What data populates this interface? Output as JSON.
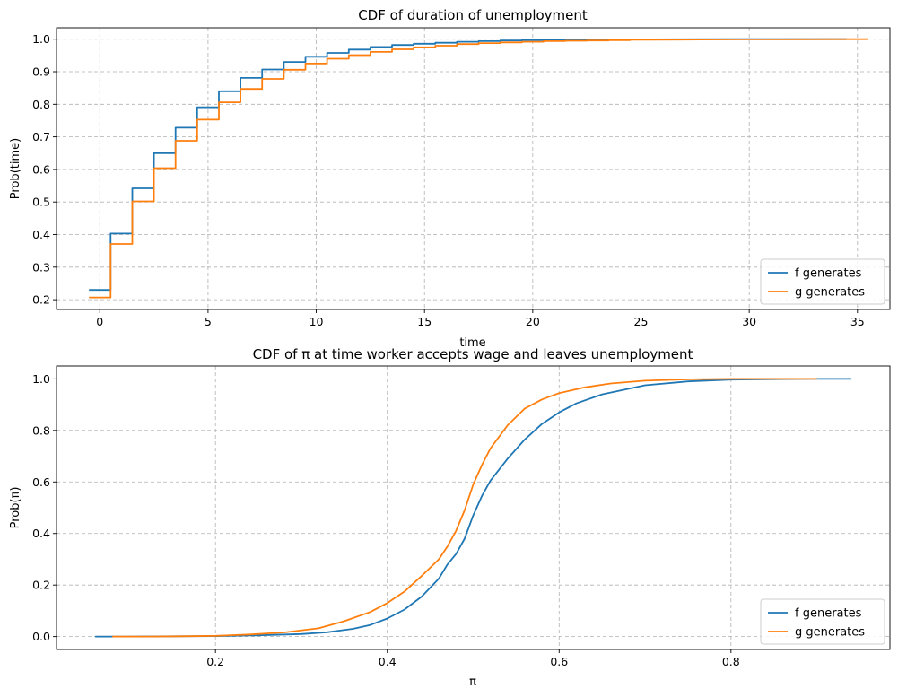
{
  "chart_data": [
    {
      "type": "line",
      "title": "CDF of duration of unemployment",
      "xlabel": "time",
      "ylabel": "Prob(time)",
      "xlim": [
        -2,
        36.5
      ],
      "ylim": [
        0.17,
        1.035
      ],
      "xticks": [
        0,
        5,
        10,
        15,
        20,
        25,
        30,
        35
      ],
      "yticks": [
        0.2,
        0.3,
        0.4,
        0.5,
        0.6,
        0.7,
        0.8,
        0.9,
        1.0
      ],
      "xtick_labels": [
        "0",
        "5",
        "10",
        "15",
        "20",
        "25",
        "30",
        "35"
      ],
      "ytick_labels": [
        "0.2",
        "0.3",
        "0.4",
        "0.5",
        "0.6",
        "0.7",
        "0.8",
        "0.9",
        "1.0"
      ],
      "grid": true,
      "legend_position": "lower-right",
      "step": true,
      "series": [
        {
          "name": "f generates",
          "color": "#1f77b4",
          "x": [
            0,
            1,
            2,
            3,
            4,
            5,
            6,
            7,
            8,
            9,
            10,
            11,
            12,
            13,
            14,
            15,
            16,
            17,
            18,
            19,
            20,
            21,
            22,
            23,
            24,
            25,
            30,
            34
          ],
          "y": [
            0.23,
            0.403,
            0.542,
            0.65,
            0.728,
            0.791,
            0.84,
            0.881,
            0.907,
            0.93,
            0.946,
            0.958,
            0.968,
            0.976,
            0.982,
            0.986,
            0.989,
            0.992,
            0.994,
            0.996,
            0.997,
            0.998,
            0.998,
            0.999,
            0.999,
            0.9995,
            0.9999,
            1.0
          ]
        },
        {
          "name": "g generates",
          "color": "#ff7f0e",
          "x": [
            0,
            1,
            2,
            3,
            4,
            5,
            6,
            7,
            8,
            9,
            10,
            11,
            12,
            13,
            14,
            15,
            16,
            17,
            18,
            19,
            20,
            21,
            22,
            23,
            24,
            25,
            30,
            35
          ],
          "y": [
            0.207,
            0.371,
            0.502,
            0.604,
            0.688,
            0.753,
            0.806,
            0.847,
            0.878,
            0.906,
            0.925,
            0.94,
            0.951,
            0.961,
            0.969,
            0.975,
            0.98,
            0.985,
            0.988,
            0.99,
            0.992,
            0.994,
            0.995,
            0.996,
            0.997,
            0.998,
            0.9995,
            1.0
          ]
        }
      ]
    },
    {
      "type": "line",
      "title": "CDF of π at time worker accepts wage and leaves unemployment",
      "xlabel": "π",
      "ylabel": "Prob(π)",
      "xlim": [
        0.015,
        0.985
      ],
      "ylim": [
        -0.05,
        1.05
      ],
      "xticks": [
        0.2,
        0.4,
        0.6,
        0.8
      ],
      "yticks": [
        0.0,
        0.2,
        0.4,
        0.6,
        0.8,
        1.0
      ],
      "xtick_labels": [
        "0.2",
        "0.4",
        "0.6",
        "0.8"
      ],
      "ytick_labels": [
        "0.0",
        "0.2",
        "0.4",
        "0.6",
        "0.8",
        "1.0"
      ],
      "grid": true,
      "legend_position": "lower-right",
      "step": false,
      "series": [
        {
          "name": "f generates",
          "color": "#1f77b4",
          "x": [
            0.06,
            0.1,
            0.15,
            0.2,
            0.25,
            0.3,
            0.33,
            0.36,
            0.38,
            0.4,
            0.42,
            0.44,
            0.46,
            0.47,
            0.48,
            0.49,
            0.5,
            0.51,
            0.52,
            0.54,
            0.56,
            0.58,
            0.6,
            0.62,
            0.65,
            0.7,
            0.75,
            0.8,
            0.85,
            0.9,
            0.94
          ],
          "y": [
            0.0,
            0.0,
            0.001,
            0.002,
            0.005,
            0.01,
            0.017,
            0.03,
            0.045,
            0.07,
            0.105,
            0.155,
            0.225,
            0.28,
            0.32,
            0.38,
            0.47,
            0.545,
            0.605,
            0.69,
            0.765,
            0.825,
            0.87,
            0.905,
            0.94,
            0.975,
            0.99,
            0.997,
            0.999,
            1.0,
            1.0
          ]
        },
        {
          "name": "g generates",
          "color": "#ff7f0e",
          "x": [
            0.08,
            0.12,
            0.16,
            0.2,
            0.24,
            0.28,
            0.32,
            0.35,
            0.38,
            0.4,
            0.42,
            0.44,
            0.46,
            0.47,
            0.48,
            0.49,
            0.5,
            0.51,
            0.52,
            0.54,
            0.56,
            0.58,
            0.6,
            0.63,
            0.66,
            0.7,
            0.75,
            0.8,
            0.85,
            0.9
          ],
          "y": [
            0.0,
            0.0,
            0.001,
            0.003,
            0.008,
            0.016,
            0.032,
            0.06,
            0.095,
            0.13,
            0.175,
            0.235,
            0.3,
            0.35,
            0.41,
            0.49,
            0.59,
            0.665,
            0.73,
            0.82,
            0.885,
            0.92,
            0.945,
            0.967,
            0.982,
            0.993,
            0.998,
            1.0,
            1.0,
            1.0
          ]
        }
      ]
    }
  ]
}
